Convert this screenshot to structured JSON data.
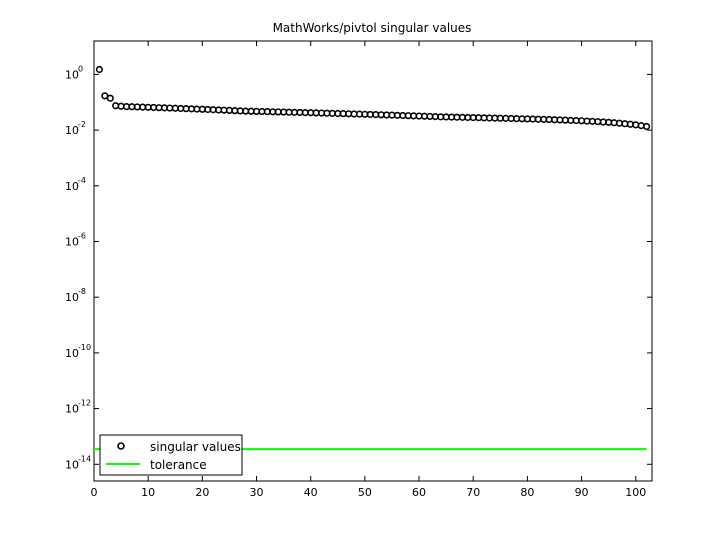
{
  "chart_data": {
    "type": "scatter",
    "title": "MathWorks/pivtol singular values",
    "xlabel": "",
    "ylabel": "",
    "xlim": [
      0,
      103
    ],
    "ylim_log10": [
      -14.6,
      1.2
    ],
    "y_scale": "log",
    "x_ticks": [
      0,
      10,
      20,
      30,
      40,
      50,
      60,
      70,
      80,
      90,
      100
    ],
    "y_tick_exponents": [
      0,
      -2,
      -4,
      -6,
      -8,
      -10,
      -12,
      -14
    ],
    "y_tick_base": "10",
    "grid": false,
    "legend_position": "bottom-left",
    "series": [
      {
        "name": "singular values",
        "marker": "circle",
        "color": "#000000",
        "x": [
          1,
          2,
          3,
          4,
          5,
          6,
          7,
          8,
          9,
          10,
          11,
          12,
          13,
          14,
          15,
          16,
          17,
          18,
          19,
          20,
          21,
          22,
          23,
          24,
          25,
          26,
          27,
          28,
          29,
          30,
          31,
          32,
          33,
          34,
          35,
          36,
          37,
          38,
          39,
          40,
          41,
          42,
          43,
          44,
          45,
          46,
          47,
          48,
          49,
          50,
          51,
          52,
          53,
          54,
          55,
          56,
          57,
          58,
          59,
          60,
          61,
          62,
          63,
          64,
          65,
          66,
          67,
          68,
          69,
          70,
          71,
          72,
          73,
          74,
          75,
          76,
          77,
          78,
          79,
          80,
          81,
          82,
          83,
          84,
          85,
          86,
          87,
          88,
          89,
          90,
          91,
          92,
          93,
          94,
          95,
          96,
          97,
          98,
          99,
          100,
          101,
          102
        ],
        "y": [
          1.5,
          0.17,
          0.14,
          0.075,
          0.072,
          0.07,
          0.069,
          0.068,
          0.067,
          0.066,
          0.065,
          0.064,
          0.063,
          0.062,
          0.061,
          0.06,
          0.059,
          0.058,
          0.057,
          0.056,
          0.055,
          0.054,
          0.053,
          0.052,
          0.051,
          0.05,
          0.049,
          0.048,
          0.0475,
          0.047,
          0.0465,
          0.046,
          0.0455,
          0.045,
          0.0445,
          0.044,
          0.0435,
          0.043,
          0.0425,
          0.042,
          0.0415,
          0.041,
          0.0405,
          0.04,
          0.0395,
          0.039,
          0.0385,
          0.038,
          0.0375,
          0.037,
          0.0365,
          0.036,
          0.0355,
          0.035,
          0.0345,
          0.034,
          0.0335,
          0.033,
          0.0325,
          0.032,
          0.0315,
          0.031,
          0.0305,
          0.03,
          0.0297,
          0.0294,
          0.0291,
          0.0288,
          0.0285,
          0.0282,
          0.0279,
          0.0276,
          0.0273,
          0.027,
          0.0267,
          0.0264,
          0.0261,
          0.0258,
          0.0255,
          0.0252,
          0.0249,
          0.0246,
          0.0243,
          0.024,
          0.0236,
          0.0232,
          0.0228,
          0.0224,
          0.022,
          0.0216,
          0.0211,
          0.0206,
          0.0201,
          0.0196,
          0.019,
          0.0184,
          0.0177,
          0.017,
          0.0162,
          0.0154,
          0.0145,
          0.0135
        ]
      },
      {
        "name": "tolerance",
        "marker": "line",
        "color": "#00ff00",
        "x": [
          0,
          102
        ],
        "y": [
          3.5e-14,
          3.5e-14
        ]
      }
    ]
  }
}
